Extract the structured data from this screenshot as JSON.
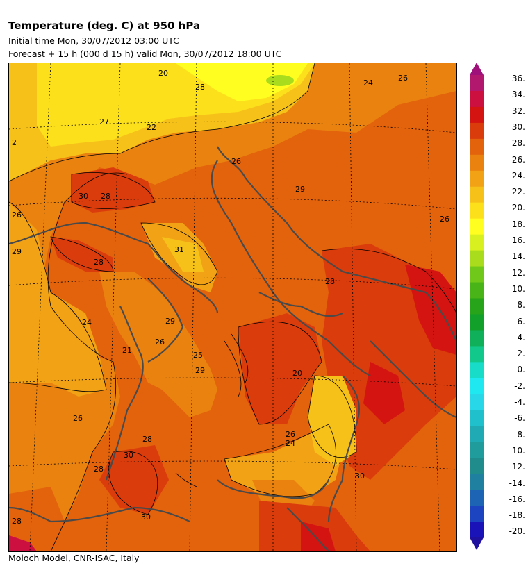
{
  "header": {
    "title": "Temperature (deg. C) at 950 hPa",
    "initial_time": "Initial time  Mon, 30/07/2012  03:00 UTC",
    "forecast": "Forecast  +  15 h  (000 d 15 h)  valid Mon, 30/07/2012 18:00 UTC"
  },
  "footer": {
    "credit": "Moloch Model, CNR-ISAC, Italy"
  },
  "colorbar": {
    "labels": [
      "36.",
      "34.",
      "32.",
      "30.",
      "28.",
      "26.",
      "24.",
      "22.",
      "20.",
      "18.",
      "16.",
      "14.",
      "12.",
      "10.",
      "8.",
      "6.",
      "4.",
      "2.",
      "0.",
      "-2.",
      "-4.",
      "-6.",
      "-8.",
      "-10.",
      "-12.",
      "-14.",
      "-16.",
      "-18.",
      "-20."
    ],
    "colors": [
      "#b2186e",
      "#cc1040",
      "#d41410",
      "#da3c0c",
      "#e3620c",
      "#ea8210",
      "#f1a215",
      "#f6c21a",
      "#fde01c",
      "#fffe20",
      "#d8f020",
      "#a8dc1c",
      "#70c81a",
      "#48b418",
      "#28a41a",
      "#12a02a",
      "#10b05a",
      "#12c88a",
      "#18dcc8",
      "#20e8f0",
      "#28d8e8",
      "#20c0cc",
      "#20aab4",
      "#209c9c",
      "#208c8c",
      "#2080a0",
      "#1e64b4",
      "#1c44c0",
      "#1a14b8"
    ]
  },
  "map": {
    "contour_labels": [
      "20",
      "28",
      "24",
      "26",
      "27",
      "22",
      "2",
      "26",
      "30",
      "28",
      "29",
      "26",
      "29",
      "28",
      "31",
      "26",
      "24",
      "28",
      "29",
      "21",
      "26",
      "25",
      "29",
      "20",
      "26",
      "28",
      "30",
      "28",
      "26",
      "24",
      "30",
      "28",
      "30"
    ]
  }
}
